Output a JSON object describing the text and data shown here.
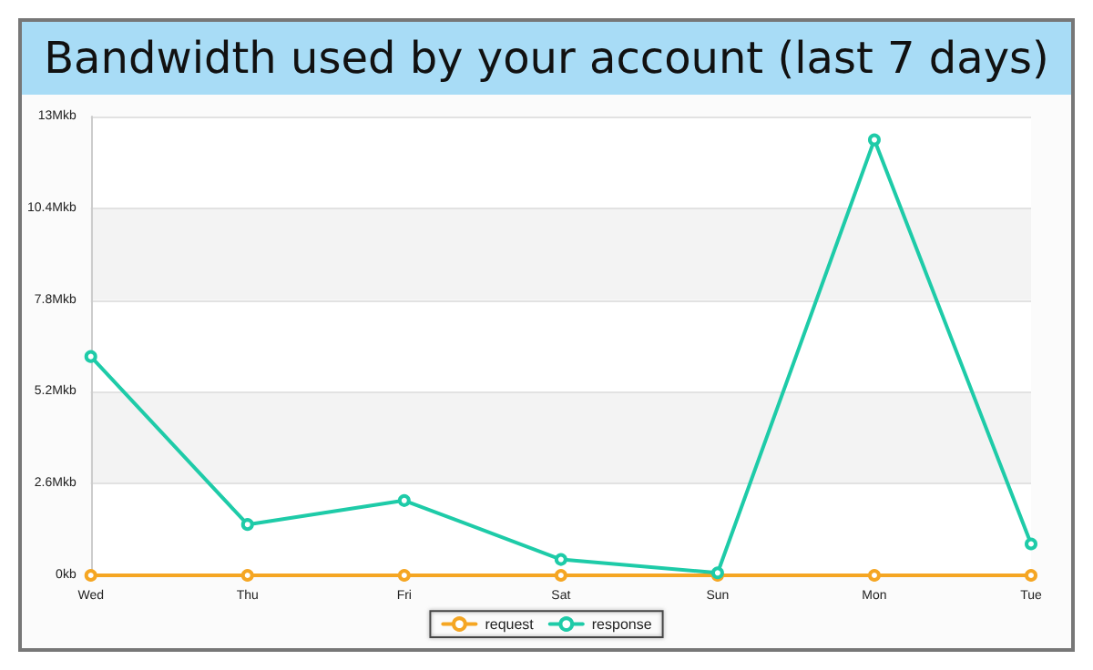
{
  "chart_data": {
    "type": "line",
    "title": "Bandwidth used by your account (last 7 days)",
    "categories": [
      "Wed",
      "Thu",
      "Fri",
      "Sat",
      "Sun",
      "Mon",
      "Tue"
    ],
    "series": [
      {
        "name": "request",
        "color": "#f5a623",
        "values": [
          0,
          0,
          0,
          0,
          0,
          0,
          0
        ]
      },
      {
        "name": "response",
        "color": "#1ecba8",
        "values": [
          6.2,
          1.44,
          2.12,
          0.45,
          0.07,
          12.34,
          0.89
        ]
      }
    ],
    "ylim": [
      0,
      13
    ],
    "yticks": [
      {
        "value": 0,
        "label": "0kb"
      },
      {
        "value": 2.6,
        "label": "2.6Mkb"
      },
      {
        "value": 5.2,
        "label": "5.2Mkb"
      },
      {
        "value": 7.8,
        "label": "7.8Mkb"
      },
      {
        "value": 10.4,
        "label": "10.4Mkb"
      },
      {
        "value": 13,
        "label": "13Mkb"
      }
    ],
    "grid": "y",
    "legend": "bottom",
    "marker": "circle",
    "line_style": "solid"
  }
}
